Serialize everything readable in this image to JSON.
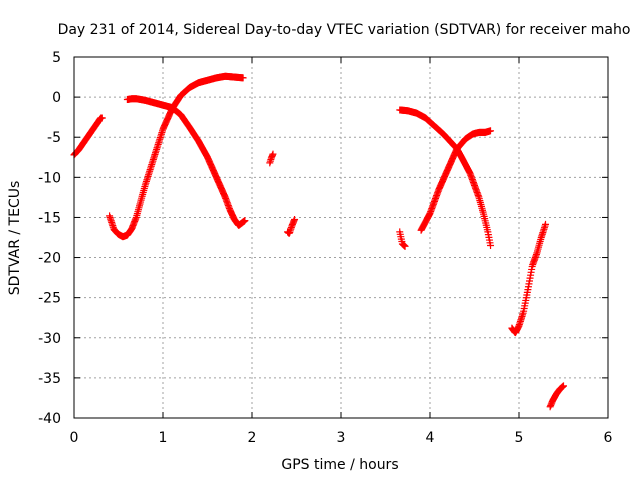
{
  "chart_data": {
    "type": "scatter",
    "title": "Day 231 of 2014, Sidereal Day-to-day VTEC variation (SDTVAR) for receiver maho",
    "xlabel": "GPS time / hours",
    "ylabel": "SDTVAR / TECUs",
    "xlim": [
      0,
      6
    ],
    "ylim": [
      -40,
      5
    ],
    "xticks": [
      "0",
      "1",
      "2",
      "3",
      "4",
      "5",
      "6"
    ],
    "yticks": [
      "5",
      "0",
      "-5",
      "-10",
      "-15",
      "-20",
      "-25",
      "-30",
      "-35",
      "-40"
    ],
    "grid": true,
    "marker": "plus",
    "color": "#ff0000",
    "segments": [
      {
        "x0": 0.0,
        "x1": 0.32,
        "points": [
          [
            0.0,
            -7.2
          ],
          [
            0.05,
            -6.6
          ],
          [
            0.1,
            -5.8
          ],
          [
            0.15,
            -5.0
          ],
          [
            0.2,
            -4.2
          ],
          [
            0.25,
            -3.4
          ],
          [
            0.3,
            -2.6
          ]
        ]
      },
      {
        "x0": 0.4,
        "x1": 1.9,
        "points": [
          [
            0.4,
            -14.8
          ],
          [
            0.45,
            -16.5
          ],
          [
            0.5,
            -17.1
          ],
          [
            0.55,
            -17.4
          ],
          [
            0.6,
            -17.2
          ],
          [
            0.65,
            -16.4
          ],
          [
            0.7,
            -15.0
          ],
          [
            0.8,
            -11.0
          ],
          [
            0.9,
            -7.5
          ],
          [
            1.0,
            -4.0
          ],
          [
            1.1,
            -1.5
          ],
          [
            1.2,
            0.2
          ],
          [
            1.3,
            1.2
          ],
          [
            1.4,
            1.8
          ],
          [
            1.5,
            2.1
          ],
          [
            1.6,
            2.4
          ],
          [
            1.7,
            2.6
          ],
          [
            1.8,
            2.5
          ],
          [
            1.9,
            2.4
          ]
        ]
      },
      {
        "x0": 0.6,
        "x1": 1.92,
        "points": [
          [
            0.6,
            -0.3
          ],
          [
            0.65,
            -0.2
          ],
          [
            0.7,
            -0.2
          ],
          [
            0.8,
            -0.4
          ],
          [
            0.9,
            -0.7
          ],
          [
            1.0,
            -1.0
          ],
          [
            1.1,
            -1.3
          ],
          [
            1.2,
            -2.2
          ],
          [
            1.3,
            -3.8
          ],
          [
            1.4,
            -5.5
          ],
          [
            1.5,
            -7.5
          ],
          [
            1.6,
            -10.0
          ],
          [
            1.7,
            -12.5
          ],
          [
            1.75,
            -14.0
          ],
          [
            1.8,
            -15.2
          ],
          [
            1.85,
            -16.0
          ],
          [
            1.92,
            -15.4
          ]
        ]
      },
      {
        "x0": 2.2,
        "x1": 2.24,
        "points": [
          [
            2.2,
            -8.2
          ],
          [
            2.22,
            -7.5
          ],
          [
            2.24,
            -7.0
          ]
        ]
      },
      {
        "x0": 2.4,
        "x1": 2.48,
        "points": [
          [
            2.4,
            -16.8
          ],
          [
            2.42,
            -17.0
          ],
          [
            2.45,
            -16.0
          ],
          [
            2.48,
            -15.2
          ]
        ]
      },
      {
        "x0": 3.66,
        "x1": 3.72,
        "points": [
          [
            3.66,
            -16.8
          ],
          [
            3.69,
            -18.3
          ],
          [
            3.72,
            -18.6
          ]
        ]
      },
      {
        "x0": 3.66,
        "x1": 4.68,
        "points": [
          [
            3.66,
            -1.6
          ],
          [
            3.75,
            -1.7
          ],
          [
            3.85,
            -2.0
          ],
          [
            3.95,
            -2.6
          ],
          [
            4.05,
            -3.6
          ],
          [
            4.15,
            -4.6
          ],
          [
            4.25,
            -5.8
          ],
          [
            4.3,
            -6.4
          ],
          [
            4.35,
            -7.4
          ],
          [
            4.45,
            -9.5
          ],
          [
            4.55,
            -12.5
          ],
          [
            4.6,
            -14.5
          ],
          [
            4.65,
            -16.8
          ],
          [
            4.68,
            -18.5
          ]
        ]
      },
      {
        "x0": 3.9,
        "x1": 4.68,
        "points": [
          [
            3.9,
            -16.6
          ],
          [
            4.0,
            -14.5
          ],
          [
            4.1,
            -11.5
          ],
          [
            4.2,
            -9.0
          ],
          [
            4.3,
            -6.5
          ],
          [
            4.4,
            -5.2
          ],
          [
            4.48,
            -4.6
          ],
          [
            4.55,
            -4.4
          ],
          [
            4.62,
            -4.4
          ],
          [
            4.68,
            -4.2
          ]
        ]
      },
      {
        "x0": 4.92,
        "x1": 5.3,
        "points": [
          [
            4.92,
            -28.8
          ],
          [
            4.96,
            -29.4
          ],
          [
            5.0,
            -28.5
          ],
          [
            5.05,
            -26.8
          ],
          [
            5.1,
            -24.0
          ],
          [
            5.15,
            -21.0
          ],
          [
            5.2,
            -19.5
          ],
          [
            5.25,
            -17.5
          ],
          [
            5.3,
            -15.8
          ]
        ]
      },
      {
        "x0": 5.35,
        "x1": 5.5,
        "points": [
          [
            5.35,
            -38.6
          ],
          [
            5.38,
            -37.8
          ],
          [
            5.42,
            -37.0
          ],
          [
            5.46,
            -36.4
          ],
          [
            5.5,
            -36.0
          ]
        ]
      }
    ]
  }
}
